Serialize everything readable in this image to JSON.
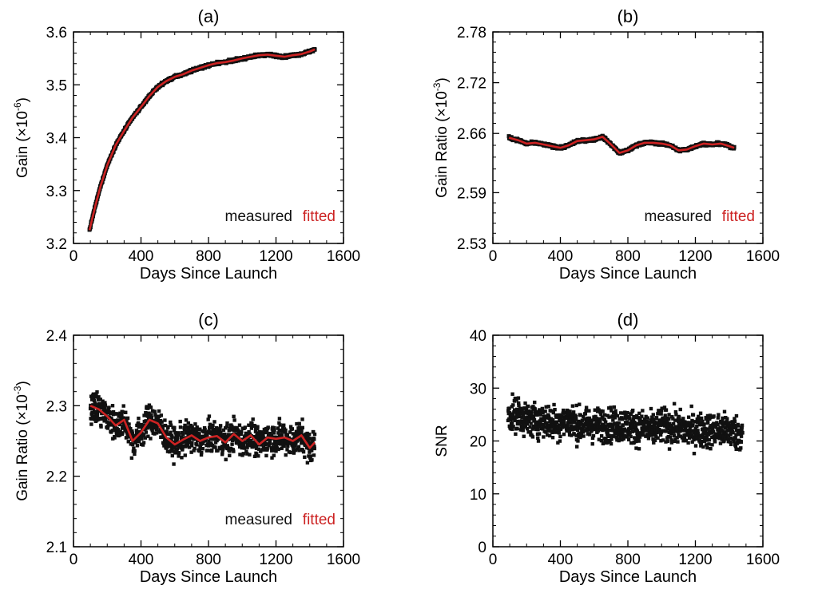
{
  "colors": {
    "measured": "#111111",
    "fitted": "#cc2222",
    "axis": "#000000"
  },
  "chart_data": [
    {
      "id": "a",
      "type": "scatter",
      "title": "(a)",
      "xlabel": "Days Since Launch",
      "ylabel_prefix": "Gain (×10",
      "ylabel_exp": "-6",
      "ylabel_suffix": ")",
      "xlim": [
        0,
        1600
      ],
      "ylim": [
        3.2,
        3.6
      ],
      "xticks": [
        0,
        400,
        800,
        1200,
        1600
      ],
      "xtick_labels": [
        "0",
        "400",
        "800",
        "1200",
        "1600"
      ],
      "yticks": [
        3.2,
        3.3,
        3.4,
        3.5,
        3.6
      ],
      "ytick_labels": [
        "3.2",
        "3.3",
        "3.4",
        "3.5",
        "3.6"
      ],
      "legend": {
        "position": "bottom-right",
        "measured": "measured",
        "fitted": "fitted"
      },
      "series": [
        {
          "name": "measured",
          "style": "dense-markers",
          "x": [
            95,
            100,
            130,
            160,
            200,
            250,
            300,
            350,
            400,
            450,
            500,
            550,
            600,
            650,
            700,
            750,
            800,
            850,
            900,
            950,
            1000,
            1050,
            1100,
            1150,
            1200,
            1250,
            1300,
            1350,
            1400,
            1430
          ],
          "y": [
            3.225,
            3.232,
            3.272,
            3.308,
            3.348,
            3.386,
            3.413,
            3.438,
            3.458,
            3.479,
            3.496,
            3.507,
            3.515,
            3.52,
            3.527,
            3.532,
            3.537,
            3.541,
            3.543,
            3.546,
            3.55,
            3.553,
            3.556,
            3.557,
            3.555,
            3.553,
            3.556,
            3.558,
            3.563,
            3.567
          ]
        },
        {
          "name": "fitted",
          "style": "line",
          "x": [
            95,
            100,
            130,
            160,
            200,
            250,
            300,
            350,
            400,
            450,
            500,
            550,
            600,
            650,
            700,
            750,
            800,
            850,
            900,
            950,
            1000,
            1050,
            1100,
            1150,
            1200,
            1250,
            1300,
            1350,
            1400,
            1430
          ],
          "y": [
            3.225,
            3.232,
            3.272,
            3.308,
            3.348,
            3.386,
            3.413,
            3.438,
            3.458,
            3.479,
            3.496,
            3.507,
            3.515,
            3.52,
            3.527,
            3.532,
            3.537,
            3.541,
            3.543,
            3.546,
            3.55,
            3.553,
            3.556,
            3.557,
            3.555,
            3.553,
            3.556,
            3.558,
            3.563,
            3.567
          ]
        }
      ]
    },
    {
      "id": "b",
      "type": "scatter",
      "title": "(b)",
      "xlabel": "Days Since Launch",
      "ylabel_prefix": "Gain Ratio (×10",
      "ylabel_exp": "-3",
      "ylabel_suffix": ")",
      "xlim": [
        0,
        1600
      ],
      "ylim": [
        2.53,
        2.78
      ],
      "xticks": [
        0,
        400,
        800,
        1200,
        1600
      ],
      "xtick_labels": [
        "0",
        "400",
        "800",
        "1200",
        "1600"
      ],
      "yticks": [
        2.53,
        2.59,
        2.66,
        2.72,
        2.78
      ],
      "ytick_labels": [
        "2.53",
        "2.59",
        "2.66",
        "2.72",
        "2.78"
      ],
      "legend": {
        "position": "bottom-right",
        "measured": "measured",
        "fitted": "fitted"
      },
      "series": [
        {
          "name": "measured",
          "style": "dense-markers",
          "x": [
            95,
            150,
            200,
            250,
            300,
            350,
            400,
            450,
            500,
            550,
            600,
            650,
            700,
            750,
            800,
            850,
            900,
            950,
            1000,
            1050,
            1100,
            1150,
            1200,
            1250,
            1300,
            1350,
            1400,
            1430
          ],
          "y": [
            2.655,
            2.652,
            2.648,
            2.649,
            2.647,
            2.645,
            2.643,
            2.646,
            2.651,
            2.652,
            2.653,
            2.656,
            2.647,
            2.637,
            2.64,
            2.646,
            2.649,
            2.649,
            2.648,
            2.646,
            2.64,
            2.641,
            2.645,
            2.648,
            2.647,
            2.648,
            2.645,
            2.643
          ]
        },
        {
          "name": "fitted",
          "style": "line",
          "x": [
            95,
            150,
            200,
            250,
            300,
            350,
            400,
            450,
            500,
            550,
            600,
            650,
            700,
            750,
            800,
            850,
            900,
            950,
            1000,
            1050,
            1100,
            1150,
            1200,
            1250,
            1300,
            1350,
            1400,
            1430
          ],
          "y": [
            2.655,
            2.652,
            2.648,
            2.649,
            2.647,
            2.645,
            2.643,
            2.646,
            2.651,
            2.652,
            2.653,
            2.656,
            2.647,
            2.637,
            2.64,
            2.646,
            2.649,
            2.649,
            2.648,
            2.646,
            2.64,
            2.641,
            2.645,
            2.648,
            2.647,
            2.648,
            2.645,
            2.643
          ]
        }
      ]
    },
    {
      "id": "c",
      "type": "scatter",
      "title": "(c)",
      "xlabel": "Days Since Launch",
      "ylabel_prefix": "Gain Ratio (×10",
      "ylabel_exp": "-3",
      "ylabel_suffix": ")",
      "xlim": [
        0,
        1600
      ],
      "ylim": [
        2.1,
        2.4
      ],
      "xticks": [
        0,
        400,
        800,
        1200,
        1600
      ],
      "xtick_labels": [
        "0",
        "400",
        "800",
        "1200",
        "1600"
      ],
      "yticks": [
        2.1,
        2.2,
        2.3,
        2.4
      ],
      "ytick_labels": [
        "2.1",
        "2.2",
        "2.3",
        "2.4"
      ],
      "legend": {
        "position": "bottom-right",
        "measured": "measured",
        "fitted": "fitted"
      },
      "series": [
        {
          "name": "measured",
          "style": "scattered-markers",
          "x": [
            100,
            150,
            200,
            250,
            300,
            350,
            400,
            450,
            500,
            550,
            600,
            650,
            700,
            750,
            800,
            850,
            900,
            950,
            1000,
            1050,
            1100,
            1150,
            1200,
            1250,
            1300,
            1350,
            1400,
            1430
          ],
          "y": [
            2.3,
            2.295,
            2.285,
            2.272,
            2.28,
            2.25,
            2.262,
            2.28,
            2.275,
            2.255,
            2.245,
            2.252,
            2.258,
            2.25,
            2.255,
            2.257,
            2.248,
            2.26,
            2.25,
            2.258,
            2.245,
            2.255,
            2.253,
            2.255,
            2.25,
            2.258,
            2.24,
            2.248
          ],
          "spread": 0.022
        },
        {
          "name": "fitted",
          "style": "line",
          "x": [
            100,
            150,
            200,
            250,
            300,
            350,
            400,
            450,
            500,
            550,
            600,
            650,
            700,
            750,
            800,
            850,
            900,
            950,
            1000,
            1050,
            1100,
            1150,
            1200,
            1250,
            1300,
            1350,
            1400,
            1430
          ],
          "y": [
            2.3,
            2.295,
            2.285,
            2.272,
            2.28,
            2.25,
            2.262,
            2.28,
            2.275,
            2.255,
            2.245,
            2.252,
            2.258,
            2.25,
            2.255,
            2.257,
            2.248,
            2.26,
            2.25,
            2.258,
            2.245,
            2.255,
            2.253,
            2.255,
            2.25,
            2.258,
            2.24,
            2.248
          ]
        }
      ]
    },
    {
      "id": "d",
      "type": "scatter",
      "title": "(d)",
      "xlabel": "Days Since Launch",
      "ylabel_prefix": "SNR",
      "ylabel_exp": "",
      "ylabel_suffix": "",
      "xlim": [
        0,
        1600
      ],
      "ylim": [
        0,
        40
      ],
      "xticks": [
        0,
        400,
        800,
        1200,
        1600
      ],
      "xtick_labels": [
        "0",
        "400",
        "800",
        "1200",
        "1600"
      ],
      "yticks": [
        0,
        10,
        20,
        30,
        40
      ],
      "ytick_labels": [
        "0",
        "10",
        "20",
        "30",
        "40"
      ],
      "legend": null,
      "series": [
        {
          "name": "measured",
          "style": "scattered-markers",
          "x": [
            90,
            150,
            200,
            250,
            300,
            350,
            400,
            450,
            500,
            550,
            600,
            650,
            700,
            750,
            800,
            850,
            900,
            950,
            1000,
            1050,
            1100,
            1150,
            1200,
            1250,
            1300,
            1350,
            1400,
            1450,
            1480
          ],
          "y": [
            25,
            25,
            24,
            24,
            24,
            23.5,
            23.5,
            24,
            23,
            23,
            23,
            23,
            23,
            23,
            23,
            22.5,
            22.5,
            22,
            23,
            22.5,
            22.5,
            22,
            22,
            22,
            22,
            22,
            22,
            21.5,
            21.5
          ],
          "spread": 3.2
        }
      ]
    }
  ]
}
